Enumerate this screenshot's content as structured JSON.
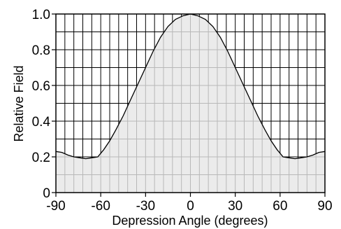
{
  "chart_data": {
    "type": "area",
    "title": "",
    "xlabel": "Depression Angle (degrees)",
    "ylabel": "Relative Field",
    "xlim": [
      -90,
      90
    ],
    "ylim": [
      0,
      1.0
    ],
    "xticks": [
      -90,
      -60,
      -30,
      0,
      30,
      60,
      90
    ],
    "xtick_labels": [
      "-90",
      "-60",
      "-30",
      "0",
      "30",
      "60",
      "90"
    ],
    "yticks": [
      0,
      0.2,
      0.4,
      0.6,
      0.8,
      1.0
    ],
    "ytick_labels": [
      "0",
      "0.2",
      "0.4",
      "0.6",
      "0.8",
      "1.0"
    ],
    "grid": true,
    "grid_step_x": 6,
    "grid_step_y": 0.1,
    "fill_color": "#e6e6e6",
    "line_color": "#000000",
    "series": [
      {
        "x": [
          -90,
          -86,
          -82,
          -78,
          -74,
          -70,
          -66,
          -62,
          -58,
          -54,
          -50,
          -45,
          -40,
          -35,
          -30,
          -25,
          -20,
          -15,
          -10,
          -5,
          0,
          5,
          10,
          15,
          20,
          25,
          30,
          35,
          40,
          45,
          50,
          54,
          58,
          62,
          66,
          70,
          74,
          78,
          82,
          86,
          90
        ],
        "y": [
          0.23,
          0.225,
          0.21,
          0.2,
          0.195,
          0.19,
          0.195,
          0.2,
          0.24,
          0.29,
          0.35,
          0.43,
          0.52,
          0.61,
          0.7,
          0.79,
          0.87,
          0.93,
          0.97,
          0.99,
          1.0,
          0.99,
          0.97,
          0.93,
          0.87,
          0.79,
          0.7,
          0.61,
          0.52,
          0.43,
          0.35,
          0.29,
          0.24,
          0.2,
          0.195,
          0.19,
          0.195,
          0.2,
          0.21,
          0.225,
          0.23
        ]
      }
    ]
  }
}
